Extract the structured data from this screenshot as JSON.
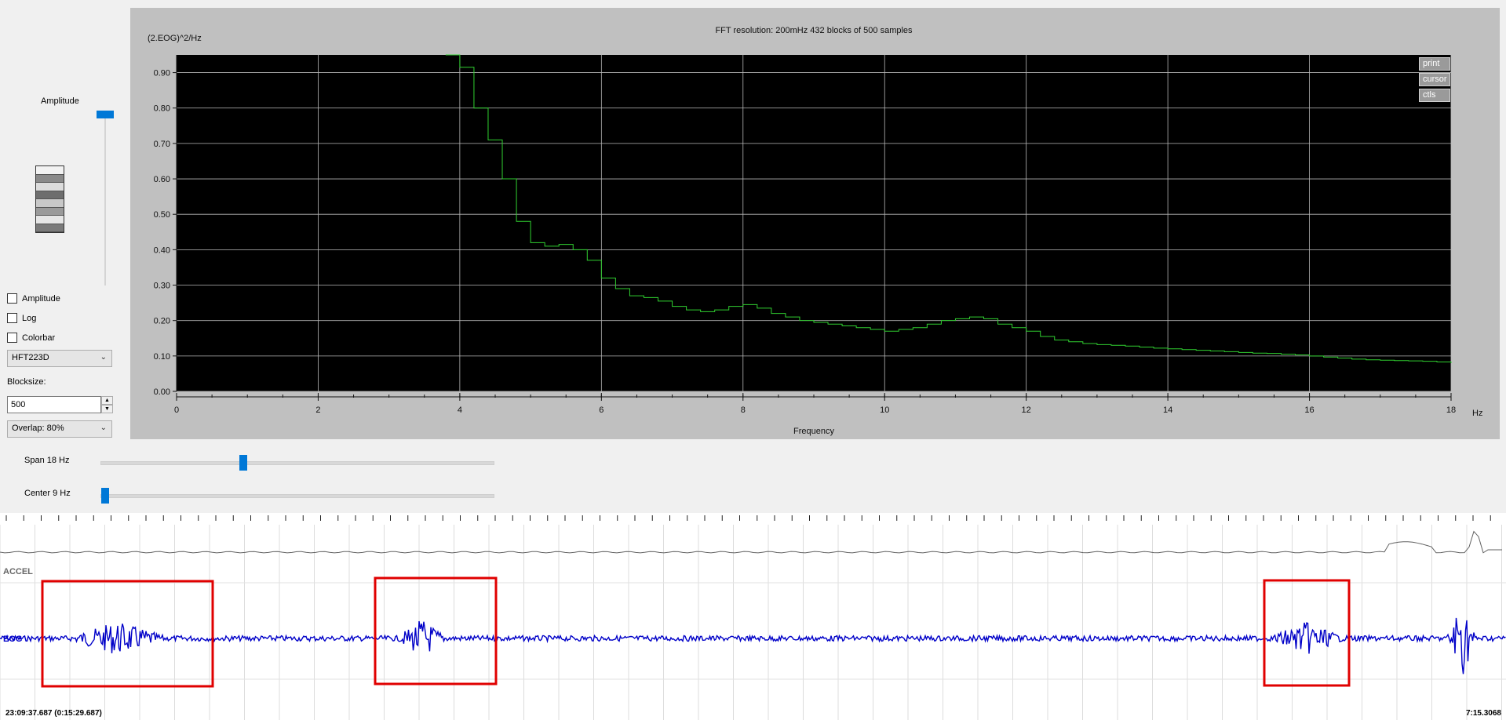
{
  "controls": {
    "amplitude_slider_label": "Amplitude",
    "checkboxes": [
      {
        "label": "Amplitude",
        "checked": false
      },
      {
        "label": "Log",
        "checked": false
      },
      {
        "label": "Colorbar",
        "checked": false
      }
    ],
    "window_function": "HFT223D",
    "blocksize_label": "Blocksize:",
    "blocksize_value": "500",
    "overlap": "Overlap: 80%",
    "span_label": "Span 18 Hz",
    "center_label": "Center 9 Hz"
  },
  "colors": {
    "accent": "#0078d7",
    "plot_bg": "#000000",
    "trace": "#30d030",
    "eog_trace": "#0000c8",
    "highlight": "#e00000",
    "grid": "#b8b8b8"
  },
  "chart_data": {
    "type": "line",
    "step": true,
    "title": "FFT resolution: 200mHz   432 blocks of 500 samples",
    "xlabel": "Frequency",
    "xunit": "Hz",
    "ylabel": "(2.EOG)^2/Hz",
    "xlim": [
      0,
      18
    ],
    "ylim": [
      0,
      0.95
    ],
    "xticks": [
      0,
      2,
      4,
      6,
      8,
      10,
      12,
      14,
      16,
      18
    ],
    "yticks": [
      "0.00",
      "0.10",
      "0.20",
      "0.30",
      "0.40",
      "0.50",
      "0.60",
      "0.70",
      "0.80",
      "0.90"
    ],
    "grid": true,
    "series": [
      {
        "x": [
          3.8,
          4.0,
          4.2,
          4.4,
          4.6,
          4.8,
          5.0,
          5.2,
          5.4,
          5.6,
          5.8,
          6.0,
          6.2,
          6.4,
          6.6,
          6.8,
          7.0,
          7.2,
          7.4,
          7.6,
          7.8,
          8.0,
          8.2,
          8.4,
          8.6,
          8.8,
          9.0,
          9.2,
          9.4,
          9.6,
          9.8,
          10.0,
          10.2,
          10.4,
          10.6,
          10.8,
          11.0,
          11.2,
          11.4,
          11.6,
          11.8,
          12.0,
          12.2,
          12.4,
          12.6,
          12.8,
          13.0,
          13.2,
          13.4,
          13.6,
          13.8,
          14.0,
          14.2,
          14.4,
          14.6,
          14.8,
          15.0,
          15.2,
          15.4,
          15.6,
          15.8,
          16.0,
          16.2,
          16.4,
          16.6,
          16.8,
          17.0,
          17.2,
          17.4,
          17.6,
          17.8,
          18.0
        ],
        "y": [
          0.95,
          0.915,
          0.8,
          0.71,
          0.6,
          0.48,
          0.42,
          0.41,
          0.415,
          0.4,
          0.37,
          0.32,
          0.29,
          0.27,
          0.265,
          0.255,
          0.24,
          0.23,
          0.225,
          0.23,
          0.24,
          0.245,
          0.235,
          0.22,
          0.21,
          0.2,
          0.195,
          0.19,
          0.185,
          0.18,
          0.175,
          0.17,
          0.175,
          0.18,
          0.19,
          0.2,
          0.205,
          0.21,
          0.205,
          0.19,
          0.18,
          0.17,
          0.155,
          0.145,
          0.14,
          0.135,
          0.132,
          0.13,
          0.128,
          0.125,
          0.122,
          0.12,
          0.118,
          0.116,
          0.114,
          0.112,
          0.11,
          0.108,
          0.107,
          0.105,
          0.103,
          0.1,
          0.097,
          0.094,
          0.091,
          0.089,
          0.088,
          0.087,
          0.086,
          0.085,
          0.083,
          0.08
        ]
      }
    ]
  },
  "plot_buttons": [
    "print",
    "cursor",
    "ctls"
  ],
  "traces": {
    "accel_label": "ACCEL",
    "eog_label": "EOG",
    "start_time": "23:09:37.687 (0:15:29.687)",
    "end_time": "7:15.3068"
  }
}
